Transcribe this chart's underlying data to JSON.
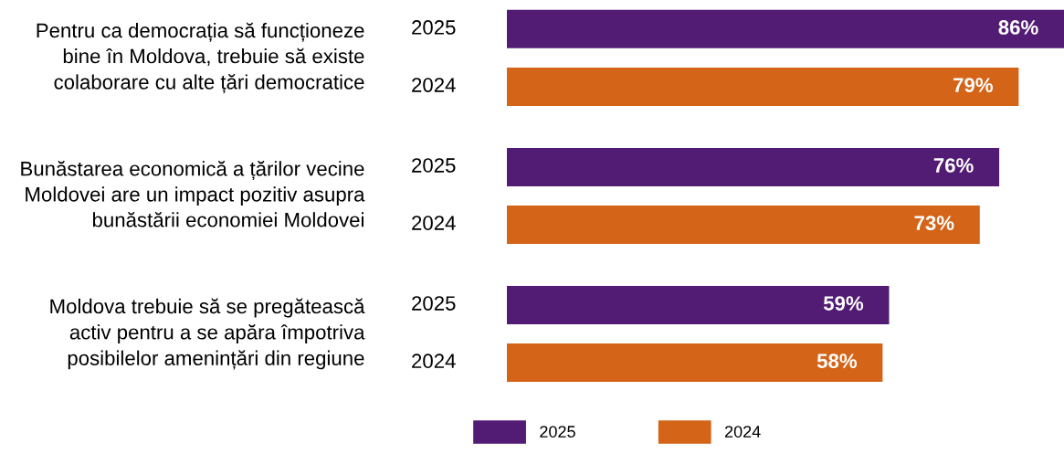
{
  "chart_data": {
    "type": "bar",
    "orientation": "horizontal",
    "categories": [
      "Pentru ca democrația să funcționeze\nbine în Moldova, trebuie să existe\ncolaborare cu alte țări democratice",
      "Bunăstarea economică a țărilor vecine\nMoldovei are un impact pozitiv asupra\nbunăstării economiei Moldovei",
      "Moldova trebuie să se pregătească\nactiv pentru a se apăra împotriva\nposibilelor amenințări din regiune"
    ],
    "series": [
      {
        "name": "2025",
        "color": "#521c74",
        "values": [
          86,
          76,
          59
        ],
        "value_labels": [
          "86%",
          "76%",
          "59%"
        ]
      },
      {
        "name": "2024",
        "color": "#d46418",
        "values": [
          79,
          73,
          58
        ],
        "value_labels": [
          "79%",
          "73%",
          "58%"
        ]
      }
    ],
    "legend": "bottom"
  }
}
